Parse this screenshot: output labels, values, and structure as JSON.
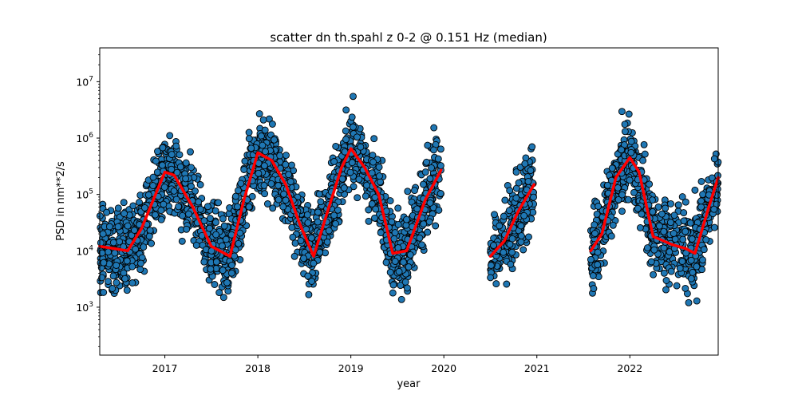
{
  "chart_data": {
    "type": "scatter",
    "title": "scatter dn th.spahl z 0-2 @ 0.151 Hz (median)",
    "xlabel": "year",
    "ylabel": "PSD in nm**2/s",
    "xlim": [
      2016.3,
      2022.95
    ],
    "ylim_log10": [
      2.15,
      7.6
    ],
    "yscale": "log",
    "x_ticks": [
      {
        "value": 2017,
        "label": "2017"
      },
      {
        "value": 2018,
        "label": "2018"
      },
      {
        "value": 2019,
        "label": "2019"
      },
      {
        "value": 2020,
        "label": "2020"
      },
      {
        "value": 2021,
        "label": "2021"
      },
      {
        "value": 2022,
        "label": "2022"
      }
    ],
    "y_ticks": [
      {
        "exp": 3,
        "label": "10^3"
      },
      {
        "exp": 4,
        "label": "10^4"
      },
      {
        "exp": 5,
        "label": "10^5"
      },
      {
        "exp": 6,
        "label": "10^6"
      },
      {
        "exp": 7,
        "label": "10^7"
      }
    ],
    "grid": false,
    "scatter_color": "#1f77b4",
    "scatter_edge_color": "#000000",
    "median_color": "#ff0000",
    "scatter_segments": [
      [
        2016.3,
        2019.97
      ],
      [
        2020.5,
        2020.97
      ],
      [
        2021.58,
        2022.95
      ]
    ],
    "median_curve": [
      {
        "x": 2016.3,
        "y": 12000
      },
      {
        "x": 2016.45,
        "y": 11000
      },
      {
        "x": 2016.6,
        "y": 10000
      },
      {
        "x": 2016.75,
        "y": 25000
      },
      {
        "x": 2016.9,
        "y": 100000
      },
      {
        "x": 2017.0,
        "y": 250000
      },
      {
        "x": 2017.1,
        "y": 220000
      },
      {
        "x": 2017.3,
        "y": 60000
      },
      {
        "x": 2017.5,
        "y": 12000
      },
      {
        "x": 2017.7,
        "y": 8000
      },
      {
        "x": 2017.85,
        "y": 80000
      },
      {
        "x": 2018.0,
        "y": 550000
      },
      {
        "x": 2018.15,
        "y": 400000
      },
      {
        "x": 2018.3,
        "y": 150000
      },
      {
        "x": 2018.45,
        "y": 30000
      },
      {
        "x": 2018.6,
        "y": 8000
      },
      {
        "x": 2018.75,
        "y": 50000
      },
      {
        "x": 2018.9,
        "y": 300000
      },
      {
        "x": 2019.0,
        "y": 650000
      },
      {
        "x": 2019.15,
        "y": 300000
      },
      {
        "x": 2019.3,
        "y": 100000
      },
      {
        "x": 2019.45,
        "y": 9000
      },
      {
        "x": 2019.6,
        "y": 10000
      },
      {
        "x": 2019.8,
        "y": 80000
      },
      {
        "x": 2019.97,
        "y": 270000
      },
      {
        "x": 2020.5,
        "y": 8000
      },
      {
        "x": 2020.65,
        "y": 15000
      },
      {
        "x": 2020.8,
        "y": 50000
      },
      {
        "x": 2020.97,
        "y": 150000
      },
      {
        "x": 2021.58,
        "y": 10000
      },
      {
        "x": 2021.7,
        "y": 20000
      },
      {
        "x": 2021.85,
        "y": 200000
      },
      {
        "x": 2022.0,
        "y": 450000
      },
      {
        "x": 2022.1,
        "y": 250000
      },
      {
        "x": 2022.25,
        "y": 18000
      },
      {
        "x": 2022.45,
        "y": 13000
      },
      {
        "x": 2022.6,
        "y": 11000
      },
      {
        "x": 2022.7,
        "y": 9000
      },
      {
        "x": 2022.85,
        "y": 60000
      },
      {
        "x": 2022.95,
        "y": 200000
      }
    ]
  }
}
